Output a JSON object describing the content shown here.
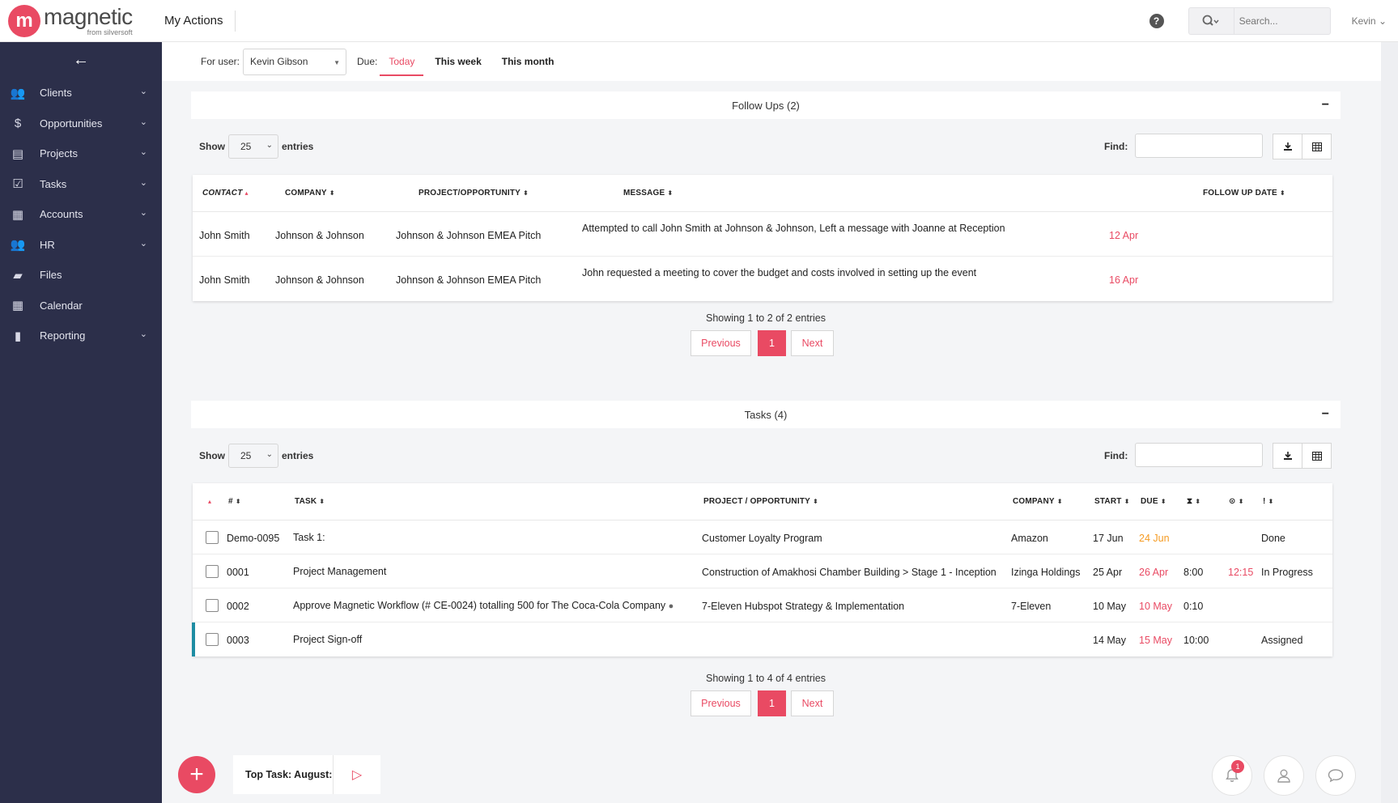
{
  "header": {
    "logo_mark": "m",
    "logo_word": "magnetic",
    "logo_sub": "from silversoft",
    "page_title": "My Actions",
    "help": "?",
    "search_placeholder": "Search...",
    "user": "Kevin"
  },
  "sidebar": {
    "back": "←",
    "items": [
      {
        "label": "Clients",
        "icon": "users-icon",
        "glyph": "👥",
        "has_children": true
      },
      {
        "label": "Opportunities",
        "icon": "dollar-icon",
        "glyph": "$",
        "has_children": true
      },
      {
        "label": "Projects",
        "icon": "folder-stack-icon",
        "glyph": "▤",
        "has_children": true
      },
      {
        "label": "Tasks",
        "icon": "checkbox-icon",
        "glyph": "☑",
        "has_children": true
      },
      {
        "label": "Accounts",
        "icon": "calculator-icon",
        "glyph": "▦",
        "has_children": true
      },
      {
        "label": "HR",
        "icon": "people-icon",
        "glyph": "👥",
        "has_children": true
      },
      {
        "label": "Files",
        "icon": "folder-open-icon",
        "glyph": "▰",
        "has_children": false
      },
      {
        "label": "Calendar",
        "icon": "calendar-icon",
        "glyph": "▦",
        "has_children": false
      },
      {
        "label": "Reporting",
        "icon": "bar-chart-icon",
        "glyph": "▮",
        "has_children": true
      }
    ]
  },
  "filter": {
    "for_user_label": "For user:",
    "user_value": "Kevin Gibson",
    "due_label": "Due:",
    "tabs": [
      "Today",
      "This week",
      "This month"
    ],
    "active_tab": "Today"
  },
  "followups": {
    "title": "Follow Ups (2)",
    "collapse": "−",
    "show_label": "Show",
    "show_value": "25",
    "entries_label": "entries",
    "find_label": "Find:",
    "columns": [
      "CONTACT",
      "COMPANY",
      "PROJECT/OPPORTUNITY",
      "MESSAGE",
      "FOLLOW UP DATE"
    ],
    "rows": [
      {
        "contact": "John Smith",
        "company": "Johnson & Johnson",
        "project": "Johnson & Johnson EMEA Pitch",
        "message": "Attempted to call John Smith at Johnson & Johnson, Left a message with Joanne at Reception",
        "date": "12 Apr"
      },
      {
        "contact": "John Smith",
        "company": "Johnson & Johnson",
        "project": "Johnson & Johnson EMEA Pitch",
        "message": "John requested a meeting to cover the budget and costs involved in setting up the event",
        "date": "16 Apr"
      }
    ],
    "summary": "Showing 1 to 2 of 2 entries",
    "pager": {
      "prev": "Previous",
      "page": "1",
      "next": "Next"
    }
  },
  "tasks": {
    "title": "Tasks (4)",
    "collapse": "−",
    "show_label": "Show",
    "show_value": "25",
    "entries_label": "entries",
    "find_label": "Find:",
    "columns": [
      "#",
      "TASK",
      "PROJECT / OPPORTUNITY",
      "COMPANY",
      "START",
      "DUE",
      "⧗",
      "⊙",
      "!"
    ],
    "rows": [
      {
        "id": "Demo-0095",
        "task": "Task 1:",
        "project": "Customer Loyalty Program",
        "company": "Amazon",
        "start": "17 Jun",
        "due": "24 Jun",
        "due_color": "orange",
        "estimate": "",
        "actual": "",
        "status": "Done",
        "comment": false,
        "accent": false
      },
      {
        "id": "0001",
        "task": "Project Management",
        "project": "Construction of Amakhosi Chamber Building > Stage 1 - Inception",
        "company": "Izinga Holdings",
        "start": "25 Apr",
        "due": "26 Apr",
        "due_color": "red",
        "estimate": "8:00",
        "actual": "12:15",
        "status": "In Progress",
        "comment": false,
        "accent": false
      },
      {
        "id": "0002",
        "task": "Approve Magnetic Workflow (# CE-0024) totalling 500 for The Coca-Cola Company",
        "project": "7-Eleven Hubspot Strategy & Implementation",
        "company": "7-Eleven",
        "start": "10 May",
        "due": "10 May",
        "due_color": "red",
        "estimate": "0:10",
        "actual": "",
        "status": "",
        "comment": true,
        "accent": false
      },
      {
        "id": "0003",
        "task": "Project Sign-off",
        "project": "",
        "company": "",
        "start": "14 May",
        "due": "15 May",
        "due_color": "red",
        "estimate": "10:00",
        "actual": "",
        "status": "Assigned",
        "comment": false,
        "accent": true
      }
    ],
    "summary": "Showing 1 to 4 of 4 entries",
    "pager": {
      "prev": "Previous",
      "page": "1",
      "next": "Next"
    }
  },
  "bottom": {
    "add": "+",
    "top_task_label": "Top Task: August:",
    "play": "▷",
    "notif_count": "1"
  },
  "colors": {
    "brand": "#e94a63",
    "sidebar": "#2c2f4a",
    "due_orange": "#f59b23",
    "accent_row": "#1e8da3"
  }
}
